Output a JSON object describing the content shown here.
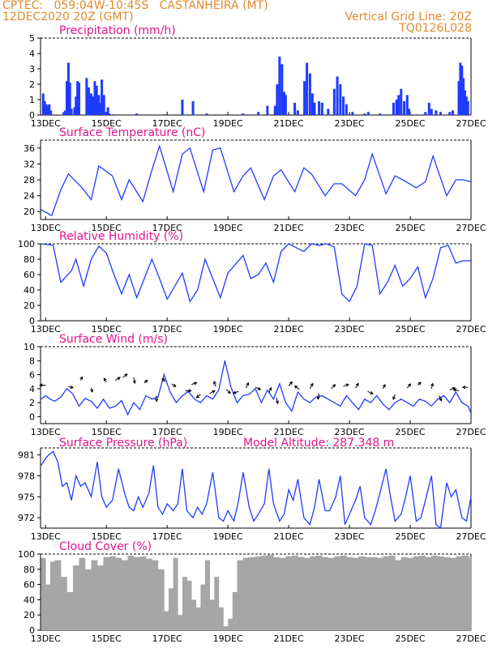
{
  "header": {
    "station_line": "CPTEC:   059:04W-10:45S   CASTANHEIRA (MT)",
    "date_line": "12DEC2020 20Z (GMT)",
    "grid_line": "Vertical Grid Line: 20Z",
    "code_line": "TQ0126L028"
  },
  "colors": {
    "header": "#e08a2c",
    "title": "#e0148c",
    "series": "#1f3bff",
    "cloud": "#a6a6a6",
    "arrow": "#000000"
  },
  "x_axis": {
    "date_labels": [
      "13DEC",
      "15DEC",
      "17DEC",
      "19DEC",
      "21DEC",
      "23DEC",
      "25DEC",
      "27DEC"
    ],
    "date_days": [
      13,
      15,
      17,
      19,
      21,
      23,
      25,
      27
    ],
    "domain_days": [
      12.833,
      27.0
    ]
  },
  "chart_data": [
    {
      "type": "bar",
      "id": "precip",
      "title": "Precipitation (mm/h)",
      "ylim": [
        0,
        5
      ],
      "yticks": [
        0,
        1,
        2,
        3,
        4,
        5
      ],
      "x": [
        12.92,
        12.97,
        13.02,
        13.07,
        13.12,
        13.17,
        13.6,
        13.65,
        13.7,
        13.75,
        13.8,
        13.85,
        13.95,
        14.0,
        14.05,
        14.1,
        14.35,
        14.42,
        14.5,
        14.55,
        14.62,
        14.68,
        14.75,
        14.8,
        14.85,
        14.92,
        15.0,
        15.05,
        15.1,
        15.2,
        16.0,
        16.9,
        17.5,
        17.85,
        18.3,
        19.0,
        19.5,
        20.0,
        20.3,
        20.55,
        20.62,
        20.7,
        20.78,
        20.85,
        20.9,
        21.2,
        21.3,
        21.52,
        21.6,
        21.7,
        21.78,
        21.85,
        22.0,
        22.1,
        22.3,
        22.5,
        22.6,
        22.7,
        22.8,
        22.9,
        23.1,
        23.5,
        23.62,
        24.0,
        24.45,
        24.55,
        24.62,
        24.7,
        24.8,
        24.9,
        24.96,
        25.5,
        25.62,
        25.7,
        25.85,
        26.0,
        26.3,
        26.4,
        26.6,
        26.65,
        26.7,
        26.75,
        26.8,
        26.85,
        26.9
      ],
      "values": [
        1.4,
        0.9,
        0.7,
        0.6,
        0.7,
        0.3,
        0.2,
        0.3,
        2.2,
        3.4,
        2.1,
        0.4,
        0.5,
        1.2,
        2.2,
        2.1,
        2.4,
        1.8,
        1.4,
        1.2,
        2.2,
        1.9,
        1.3,
        0.8,
        2.3,
        1.3,
        0.2,
        0.5,
        0.1,
        0.05,
        0.1,
        0.05,
        1.0,
        0.9,
        0.1,
        0.05,
        0.1,
        0.2,
        0.6,
        0.6,
        2.0,
        3.8,
        3.3,
        1.5,
        1.3,
        0.8,
        0.3,
        2.2,
        3.4,
        2.7,
        1.4,
        0.8,
        0.9,
        0.8,
        0.4,
        1.7,
        2.5,
        2.0,
        1.2,
        0.7,
        0.2,
        0.1,
        0.2,
        0.1,
        0.8,
        1.0,
        1.3,
        1.7,
        0.9,
        1.3,
        0.4,
        0.2,
        0.8,
        0.4,
        0.3,
        0.2,
        0.2,
        0.3,
        2.2,
        3.4,
        3.2,
        2.4,
        1.6,
        1.2,
        0.9
      ]
    },
    {
      "type": "line",
      "id": "temp",
      "title": "Surface Temperature (nC)",
      "ylim": [
        18,
        38
      ],
      "yticks": [
        20,
        24,
        28,
        32,
        36
      ],
      "x": [
        12.85,
        13.2,
        13.5,
        13.75,
        14.2,
        14.5,
        14.75,
        15.2,
        15.5,
        15.75,
        16.2,
        16.5,
        16.75,
        17.2,
        17.5,
        17.75,
        18.2,
        18.5,
        18.75,
        19.2,
        19.5,
        19.75,
        20.2,
        20.5,
        20.75,
        21.2,
        21.5,
        21.75,
        22.2,
        22.5,
        22.75,
        23.2,
        23.5,
        23.75,
        24.2,
        24.5,
        24.75,
        25.2,
        25.5,
        25.75,
        26.2,
        26.5,
        26.75,
        27.0
      ],
      "y": [
        20.5,
        19.0,
        25.5,
        29.5,
        26.0,
        23.0,
        31.5,
        29.0,
        23.0,
        28.0,
        22.5,
        30.5,
        36.5,
        25.0,
        34.5,
        36.0,
        25.0,
        35.5,
        36.0,
        25.0,
        29.0,
        31.0,
        23.0,
        29.0,
        30.5,
        25.0,
        31.0,
        29.5,
        24.0,
        27.0,
        27.0,
        24.0,
        28.0,
        34.5,
        24.5,
        29.0,
        28.0,
        26.0,
        27.5,
        34.0,
        24.0,
        28.0,
        28.0,
        27.5
      ]
    },
    {
      "type": "line",
      "id": "rh",
      "title": "Relative Humidity (%)",
      "ylim": [
        0,
        100
      ],
      "yticks": [
        0,
        20,
        40,
        60,
        80,
        100
      ],
      "x": [
        12.85,
        13.25,
        13.5,
        13.85,
        14.0,
        14.25,
        14.5,
        14.75,
        15.0,
        15.25,
        15.5,
        15.75,
        16.0,
        16.5,
        16.75,
        17.0,
        17.25,
        17.5,
        17.75,
        18.0,
        18.25,
        18.5,
        18.75,
        19.0,
        19.5,
        19.75,
        20.0,
        20.25,
        20.5,
        20.75,
        21.0,
        21.25,
        21.5,
        21.75,
        22.0,
        22.25,
        22.5,
        22.75,
        23.0,
        23.25,
        23.5,
        23.75,
        24.0,
        24.25,
        24.5,
        24.75,
        25.0,
        25.25,
        25.5,
        25.75,
        26.0,
        26.25,
        26.5,
        26.75,
        27.0
      ],
      "y": [
        100,
        98,
        50,
        65,
        80,
        45,
        80,
        97,
        88,
        60,
        35,
        60,
        30,
        80,
        55,
        28,
        45,
        62,
        25,
        40,
        80,
        55,
        30,
        62,
        85,
        55,
        60,
        75,
        50,
        90,
        100,
        95,
        90,
        100,
        98,
        100,
        96,
        35,
        25,
        45,
        100,
        98,
        35,
        50,
        72,
        45,
        55,
        70,
        30,
        55,
        95,
        98,
        75,
        78,
        78
      ]
    },
    {
      "type": "line",
      "id": "wind",
      "title": "Surface Wind (m/s)",
      "ylim": [
        -1,
        10
      ],
      "yticks": [
        0,
        2,
        4,
        6,
        8,
        10
      ],
      "x": [
        12.85,
        13.0,
        13.15,
        13.3,
        13.5,
        13.7,
        13.9,
        14.1,
        14.3,
        14.5,
        14.7,
        14.9,
        15.1,
        15.3,
        15.5,
        15.7,
        15.9,
        16.1,
        16.3,
        16.5,
        16.7,
        16.9,
        17.1,
        17.3,
        17.5,
        17.7,
        17.9,
        18.1,
        18.3,
        18.5,
        18.7,
        18.9,
        19.1,
        19.3,
        19.5,
        19.7,
        19.9,
        20.1,
        20.3,
        20.5,
        20.7,
        20.9,
        21.1,
        21.3,
        21.5,
        21.7,
        21.9,
        22.1,
        22.3,
        22.5,
        22.7,
        22.9,
        23.1,
        23.3,
        23.5,
        23.7,
        23.9,
        24.1,
        24.3,
        24.5,
        24.7,
        24.9,
        25.1,
        25.3,
        25.5,
        25.7,
        25.9,
        26.1,
        26.3,
        26.5,
        26.7,
        26.9,
        27.0
      ],
      "y": [
        2.5,
        3.0,
        2.5,
        2.2,
        2.8,
        4.0,
        3.2,
        1.5,
        2.6,
        2.2,
        1.2,
        2.5,
        1.2,
        1.5,
        2.3,
        0.3,
        2.0,
        1.0,
        3.0,
        2.5,
        2.8,
        6.0,
        3.5,
        2.0,
        3.0,
        3.6,
        2.5,
        2.0,
        3.0,
        2.5,
        3.8,
        8.0,
        4.2,
        2.0,
        3.0,
        3.2,
        4.0,
        2.0,
        3.8,
        2.5,
        4.7,
        2.0,
        0.8,
        3.5,
        2.5,
        2.0,
        2.8,
        3.0,
        2.5,
        2.0,
        1.5,
        3.0,
        2.0,
        1.0,
        2.5,
        2.0,
        3.0,
        1.8,
        1.0,
        2.0,
        2.5,
        2.0,
        1.5,
        2.5,
        2.2,
        1.5,
        2.5,
        3.0,
        2.0,
        3.5,
        2.0,
        1.5,
        0.5
      ],
      "vectors": [
        {
          "x": 13.0,
          "y": 4.5,
          "u": -1.0,
          "v": 0.0
        },
        {
          "x": 13.75,
          "y": 4.3,
          "u": 0.8,
          "v": -0.2
        },
        {
          "x": 14.15,
          "y": 5.2,
          "u": 0.3,
          "v": 0.6
        },
        {
          "x": 14.5,
          "y": 4.1,
          "u": 0.2,
          "v": -0.7
        },
        {
          "x": 15.0,
          "y": 4.9,
          "u": -0.4,
          "v": 0.7
        },
        {
          "x": 15.3,
          "y": 5.2,
          "u": 0.8,
          "v": 0.5
        },
        {
          "x": 15.55,
          "y": 5.6,
          "u": 0.7,
          "v": 0.6
        },
        {
          "x": 15.9,
          "y": 5.6,
          "u": 0.2,
          "v": -1.0
        },
        {
          "x": 16.25,
          "y": 4.8,
          "u": 0.5,
          "v": 0.5
        },
        {
          "x": 16.65,
          "y": 3.0,
          "u": 0.0,
          "v": -1.0
        },
        {
          "x": 16.95,
          "y": 5.0,
          "u": -0.6,
          "v": 0.5
        },
        {
          "x": 17.15,
          "y": 4.7,
          "u": 0.7,
          "v": -0.5
        },
        {
          "x": 17.6,
          "y": 3.7,
          "u": 1.0,
          "v": 0.0
        },
        {
          "x": 17.8,
          "y": 4.6,
          "u": 0.9,
          "v": 0.3
        },
        {
          "x": 18.1,
          "y": 3.2,
          "u": -0.7,
          "v": -0.6
        },
        {
          "x": 18.4,
          "y": 3.3,
          "u": 0.9,
          "v": 0.5
        },
        {
          "x": 18.6,
          "y": 4.3,
          "u": -0.3,
          "v": 0.9
        },
        {
          "x": 18.95,
          "y": 3.9,
          "u": 0.7,
          "v": -0.7
        },
        {
          "x": 19.35,
          "y": 3.6,
          "u": -0.9,
          "v": -0.3
        },
        {
          "x": 19.6,
          "y": 4.1,
          "u": 0.4,
          "v": 0.9
        },
        {
          "x": 19.9,
          "y": 4.2,
          "u": 0.9,
          "v": -0.4
        },
        {
          "x": 20.35,
          "y": 3.4,
          "u": 0.4,
          "v": 0.9
        },
        {
          "x": 20.6,
          "y": 2.7,
          "u": 0.2,
          "v": -1.0
        },
        {
          "x": 21.0,
          "y": 4.4,
          "u": 0.6,
          "v": 0.7
        },
        {
          "x": 21.35,
          "y": 3.9,
          "u": -0.8,
          "v": 0.6
        },
        {
          "x": 21.7,
          "y": 4.0,
          "u": 0.5,
          "v": 0.9
        },
        {
          "x": 22.0,
          "y": 3.3,
          "u": -0.2,
          "v": -1.0
        },
        {
          "x": 22.4,
          "y": 4.0,
          "u": 0.7,
          "v": 0.7
        },
        {
          "x": 22.8,
          "y": 4.3,
          "u": 0.9,
          "v": 0.4
        },
        {
          "x": 23.2,
          "y": 4.1,
          "u": 0.5,
          "v": 0.8
        },
        {
          "x": 23.6,
          "y": 3.6,
          "u": 0.9,
          "v": -0.4
        },
        {
          "x": 24.1,
          "y": 4.0,
          "u": 0.4,
          "v": 0.7
        },
        {
          "x": 24.5,
          "y": 3.2,
          "u": -0.3,
          "v": -0.9
        },
        {
          "x": 24.9,
          "y": 4.1,
          "u": 0.6,
          "v": 0.7
        },
        {
          "x": 25.25,
          "y": 4.5,
          "u": 0.5,
          "v": 0.5
        },
        {
          "x": 25.7,
          "y": 4.0,
          "u": 0.2,
          "v": 0.9
        },
        {
          "x": 25.95,
          "y": 3.0,
          "u": 0.4,
          "v": -0.9
        },
        {
          "x": 26.3,
          "y": 3.8,
          "u": 0.9,
          "v": 0.4
        },
        {
          "x": 26.6,
          "y": 3.7,
          "u": -0.9,
          "v": 0.2
        },
        {
          "x": 26.9,
          "y": 4.2,
          "u": -0.9,
          "v": 0.0
        }
      ]
    },
    {
      "type": "line",
      "id": "pressure",
      "title": "Surface Pressure (hPa)",
      "model_altitude_label": "Model Altitude: 287.348 m",
      "ylim": [
        970.5,
        982
      ],
      "yticks": [
        972,
        975,
        978,
        981
      ],
      "x": [
        12.85,
        13.0,
        13.1,
        13.25,
        13.4,
        13.55,
        13.7,
        13.85,
        14.0,
        14.15,
        14.3,
        14.5,
        14.7,
        14.85,
        15.0,
        15.2,
        15.4,
        15.6,
        15.75,
        15.9,
        16.05,
        16.2,
        16.4,
        16.55,
        16.7,
        16.85,
        17.0,
        17.2,
        17.35,
        17.5,
        17.65,
        17.85,
        18.0,
        18.15,
        18.3,
        18.5,
        18.7,
        18.85,
        19.0,
        19.2,
        19.35,
        19.5,
        19.7,
        19.85,
        20.0,
        20.2,
        20.35,
        20.5,
        20.7,
        20.85,
        21.0,
        21.15,
        21.3,
        21.5,
        21.7,
        21.85,
        22.0,
        22.2,
        22.35,
        22.55,
        22.7,
        22.85,
        23.0,
        23.2,
        23.35,
        23.5,
        23.7,
        23.85,
        24.0,
        24.2,
        24.35,
        24.5,
        24.7,
        24.85,
        25.0,
        25.2,
        25.35,
        25.5,
        25.7,
        25.85,
        26.0,
        26.2,
        26.35,
        26.5,
        26.7,
        26.85,
        27.0
      ],
      "y": [
        979.5,
        980.5,
        981.0,
        981.5,
        980.0,
        976.5,
        977.0,
        974.5,
        978.0,
        976.5,
        977.0,
        975.0,
        980.0,
        975.0,
        973.5,
        974.5,
        979.0,
        975.5,
        973.5,
        973.0,
        975.0,
        973.5,
        975.5,
        979.5,
        973.5,
        972.5,
        974.0,
        973.0,
        974.0,
        979.0,
        973.0,
        972.0,
        973.5,
        972.5,
        974.0,
        978.5,
        972.0,
        971.5,
        973.0,
        971.5,
        974.5,
        978.5,
        973.5,
        971.5,
        972.5,
        974.0,
        979.0,
        974.0,
        971.5,
        972.5,
        976.0,
        974.5,
        977.5,
        972.0,
        971.0,
        973.5,
        977.5,
        973.0,
        973.0,
        975.0,
        978.0,
        971.0,
        972.5,
        974.5,
        976.5,
        972.0,
        971.0,
        973.0,
        975.5,
        979.0,
        975.0,
        971.5,
        972.5,
        975.0,
        978.0,
        971.5,
        972.0,
        974.5,
        978.0,
        971.0,
        970.5,
        977.0,
        975.0,
        976.0,
        972.0,
        971.5,
        975.0
      ]
    },
    {
      "type": "bar",
      "id": "cloud",
      "title": "Cloud Cover (%)",
      "ylim": [
        0,
        100
      ],
      "yticks": [
        0,
        20,
        40,
        60,
        80,
        100
      ],
      "x": [
        12.85,
        13.0,
        13.15,
        13.3,
        13.5,
        13.7,
        13.9,
        14.1,
        14.3,
        14.5,
        14.7,
        14.9,
        15.1,
        15.3,
        15.5,
        15.7,
        15.9,
        16.1,
        16.3,
        16.5,
        16.7,
        16.9,
        17.05,
        17.2,
        17.35,
        17.5,
        17.65,
        17.8,
        17.95,
        18.1,
        18.25,
        18.4,
        18.55,
        18.7,
        18.85,
        19.0,
        19.15,
        19.3,
        19.5,
        19.7,
        19.9,
        20.1,
        20.3,
        20.5,
        20.7,
        20.9,
        21.1,
        21.3,
        21.5,
        21.7,
        21.9,
        22.1,
        22.3,
        22.5,
        22.7,
        22.9,
        23.1,
        23.3,
        23.5,
        23.7,
        23.9,
        24.1,
        24.3,
        24.5,
        24.7,
        24.9,
        25.1,
        25.3,
        25.5,
        25.7,
        25.9,
        26.1,
        26.3,
        26.5,
        26.7,
        26.9
      ],
      "values": [
        95,
        60,
        90,
        92,
        70,
        50,
        85,
        95,
        80,
        92,
        85,
        96,
        97,
        95,
        92,
        98,
        96,
        97,
        94,
        92,
        80,
        25,
        55,
        95,
        20,
        70,
        65,
        40,
        30,
        60,
        92,
        40,
        70,
        30,
        5,
        15,
        50,
        92,
        95,
        96,
        97,
        98,
        99,
        96,
        95,
        97,
        98,
        96,
        95,
        97,
        98,
        96,
        95,
        97,
        98,
        96,
        95,
        97,
        96,
        96,
        95,
        97,
        98,
        92,
        96,
        95,
        97,
        98,
        96,
        98,
        97,
        96,
        95,
        97,
        98,
        96
      ]
    }
  ]
}
